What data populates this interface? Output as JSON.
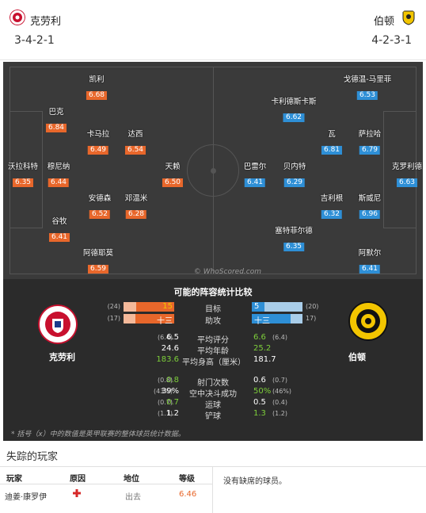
{
  "header": {
    "home_name": "克劳利",
    "home_formation": "3-4-2-1",
    "away_name": "伯顿",
    "away_formation": "4-2-3-1"
  },
  "pitch": {
    "home_players": [
      {
        "name": "凯利",
        "rating": "6.68"
      },
      {
        "name": "巴克",
        "rating": "6.84"
      },
      {
        "name": "卡马拉",
        "rating": "6.49"
      },
      {
        "name": "达西",
        "rating": "6.54"
      },
      {
        "name": "沃拉科特",
        "rating": "6.35"
      },
      {
        "name": "穆尼纳",
        "rating": "6.44"
      },
      {
        "name": "天赖",
        "rating": "6.50"
      },
      {
        "name": "安德森",
        "rating": "6.52"
      },
      {
        "name": "邓温米",
        "rating": "6.28"
      },
      {
        "name": "谷牧",
        "rating": "6.41"
      },
      {
        "name": "阿德耶莫",
        "rating": "6.59"
      }
    ],
    "away_players": [
      {
        "name": "戈德温-马里菲",
        "rating": "6.53"
      },
      {
        "name": "卡利德斯卡斯",
        "rating": "6.62"
      },
      {
        "name": "瓦",
        "rating": "6.81"
      },
      {
        "name": "萨拉哈",
        "rating": "6.79"
      },
      {
        "name": "巴雷尔",
        "rating": "6.41"
      },
      {
        "name": "贝内特",
        "rating": "6.29"
      },
      {
        "name": "克罗利德",
        "rating": "6.63"
      },
      {
        "name": "吉利根",
        "rating": "6.32"
      },
      {
        "name": "斯威尼",
        "rating": "6.96"
      },
      {
        "name": "塞特菲尔德",
        "rating": "6.35"
      },
      {
        "name": "阿默尔",
        "rating": "6.41"
      }
    ],
    "watermark": "© WhoScored.com"
  },
  "comparison": {
    "title": "可能的阵容统计比较",
    "home_team": "克劳利",
    "away_team": "伯顿",
    "bars": [
      {
        "label": "目标",
        "home_small": "(24)",
        "home_value": "15",
        "away_value": "5",
        "away_small": "(20)",
        "home_frac": 0.75,
        "away_frac": 0.25
      },
      {
        "label": "助攻",
        "home_small": "(17)",
        "home_value": "十三",
        "away_value": "十三",
        "away_small": "17)",
        "home_frac": 0.76,
        "away_frac": 0.76
      }
    ],
    "stats1": [
      {
        "label": "平均评分",
        "home_small": "(6.4)",
        "home_value": "6.5",
        "away_value": "6.6",
        "away_small": "(6.4)",
        "home_green": false,
        "away_green": true
      },
      {
        "label": "平均年龄",
        "home_small": "",
        "home_value": "24.6",
        "away_value": "25.2",
        "away_small": "",
        "home_green": false,
        "away_green": true
      },
      {
        "label": "平均身高（厘米）",
        "home_small": "",
        "home_value": "183.6",
        "away_value": "181.7",
        "away_small": "",
        "home_green": true,
        "away_green": false
      }
    ],
    "stats2": [
      {
        "label": "射门次数",
        "home_small": "(0.8)",
        "home_value": "0.8",
        "away_value": "0.6",
        "away_small": "(0.7)",
        "home_green": true,
        "away_green": false
      },
      {
        "label": "空中决斗成功",
        "home_small": "(43%)",
        "home_value": "39%",
        "away_value": "50%",
        "away_small": "(46%)",
        "home_green": false,
        "away_green": true
      },
      {
        "label": "运球",
        "home_small": "(0.7)",
        "home_value": "0.7",
        "away_value": "0.5",
        "away_small": "(0.4)",
        "home_green": true,
        "away_green": false
      },
      {
        "label": "铲球",
        "home_small": "(1.1)",
        "home_value": "1.2",
        "away_value": "1.3",
        "away_small": "(1.2)",
        "home_green": false,
        "away_green": true
      }
    ],
    "note": "* 括号（x）中的数值是英甲联赛的整体球员统计数据。"
  },
  "missing": {
    "title": "失踪的玩家",
    "headers": [
      "玩家",
      "原因",
      "地位",
      "等级"
    ],
    "rows": [
      {
        "player": "迪姜·康罗伊",
        "status": "出去",
        "rating": "6.46"
      }
    ],
    "away_text": "没有缺席的球员。"
  },
  "colors": {
    "home": "#e8672b",
    "away": "#2e8fd6",
    "home_bar_light": "#f4b99a",
    "away_bar_light": "#a9cde9",
    "positive": "#7dcf3a"
  }
}
